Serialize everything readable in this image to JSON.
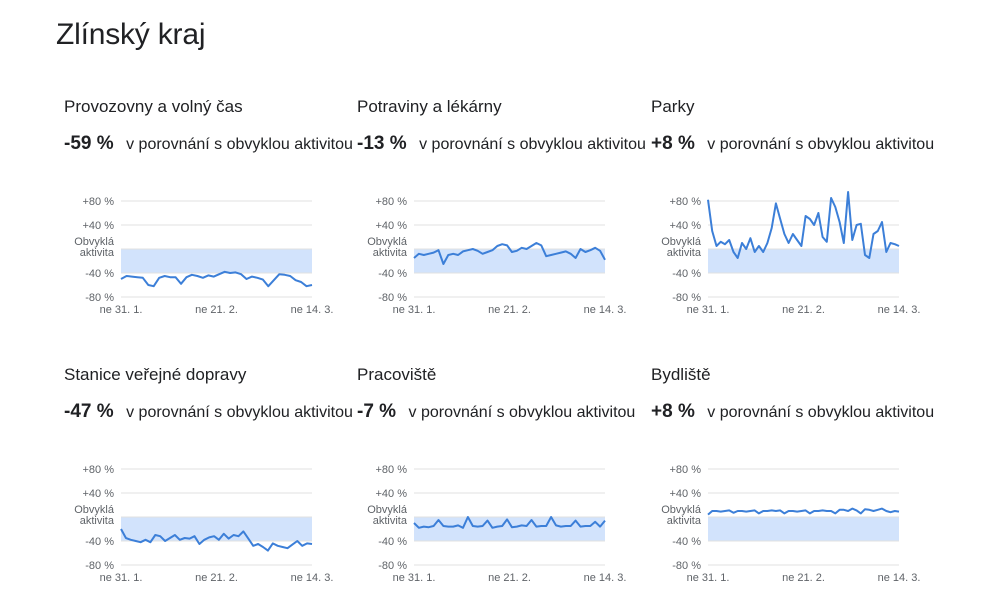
{
  "page": {
    "title": "Zlínský kraj"
  },
  "comparison_text": "v porovnání s obvyklou aktivitou",
  "colors": {
    "line": "#3c7fd8",
    "band": "#d2e3fc",
    "grid": "#e0e0e0",
    "text": "#202124",
    "tick": "#5f6368"
  },
  "chart_data": [
    {
      "type": "line",
      "title": "Provozovny a volný čas",
      "change": "-59 %",
      "ylim": [
        -80,
        80
      ],
      "y_ticks": [
        "+80 %",
        "+40 %",
        "Obvyklá aktivita",
        "-40 %",
        "-80 %"
      ],
      "x_ticks": [
        "ne 31. 1.",
        "ne 21. 2.",
        "ne 14. 3."
      ],
      "series": [
        {
          "values": [
            -50,
            -45,
            -46,
            -47,
            -48,
            -60,
            -62,
            -48,
            -45,
            -47,
            -47,
            -58,
            -47,
            -43,
            -45,
            -48,
            -44,
            -46,
            -42,
            -38,
            -40,
            -39,
            -42,
            -50,
            -46,
            -48,
            -51,
            -62,
            -52,
            -42,
            -43,
            -45,
            -52,
            -55,
            -62,
            -60
          ]
        }
      ]
    },
    {
      "type": "line",
      "title": "Potraviny a lékárny",
      "change": "-13 %",
      "ylim": [
        -80,
        80
      ],
      "y_ticks": [
        "+80 %",
        "+40 %",
        "Obvyklá aktivita",
        "-40 %",
        "-80 %"
      ],
      "x_ticks": [
        "ne 31. 1.",
        "ne 21. 2.",
        "ne 14. 3."
      ],
      "series": [
        {
          "values": [
            -15,
            -8,
            -10,
            -8,
            -6,
            -2,
            -25,
            -10,
            -8,
            -10,
            -4,
            -2,
            0,
            -3,
            -8,
            -5,
            -2,
            5,
            8,
            6,
            -5,
            -3,
            2,
            0,
            5,
            10,
            6,
            -12,
            -10,
            -8,
            -6,
            -4,
            -8,
            -15,
            0,
            -5,
            -2,
            2,
            -3,
            -18
          ]
        }
      ]
    },
    {
      "type": "line",
      "title": "Parky",
      "change": "+8 %",
      "ylim": [
        -80,
        80
      ],
      "y_ticks": [
        "+80 %",
        "+40 %",
        "Obvyklá aktivita",
        "-40 %",
        "-80 %"
      ],
      "x_ticks": [
        "ne 31. 1.",
        "ne 21. 2.",
        "ne 14. 3."
      ],
      "series": [
        {
          "values": [
            82,
            30,
            5,
            12,
            8,
            15,
            -5,
            -15,
            10,
            0,
            18,
            -5,
            5,
            -5,
            10,
            35,
            76,
            50,
            25,
            10,
            25,
            15,
            5,
            55,
            50,
            40,
            60,
            20,
            12,
            85,
            70,
            45,
            10,
            95,
            15,
            40,
            42,
            -10,
            -15,
            25,
            30,
            45,
            -5,
            10,
            8,
            5
          ]
        }
      ]
    },
    {
      "type": "line",
      "title": "Stanice veřejné dopravy",
      "change": "-47 %",
      "ylim": [
        -80,
        80
      ],
      "y_ticks": [
        "+80 %",
        "+40 %",
        "Obvyklá aktivita",
        "-40 %",
        "-80 %"
      ],
      "x_ticks": [
        "ne 31. 1.",
        "ne 21. 2.",
        "ne 14. 3."
      ],
      "series": [
        {
          "values": [
            -20,
            -35,
            -38,
            -40,
            -42,
            -38,
            -42,
            -30,
            -32,
            -40,
            -35,
            -30,
            -38,
            -35,
            -36,
            -32,
            -45,
            -38,
            -34,
            -32,
            -38,
            -28,
            -36,
            -30,
            -32,
            -24,
            -36,
            -48,
            -45,
            -50,
            -56,
            -44,
            -48,
            -50,
            -52,
            -46,
            -40,
            -48,
            -44,
            -45
          ]
        }
      ]
    },
    {
      "type": "line",
      "title": "Pracoviště",
      "change": "-7 %",
      "ylim": [
        -80,
        80
      ],
      "y_ticks": [
        "+80 %",
        "+40 %",
        "Obvyklá aktivita",
        "-40 %",
        "-80 %"
      ],
      "x_ticks": [
        "ne 31. 1.",
        "ne 21. 2.",
        "ne 14. 3."
      ],
      "series": [
        {
          "values": [
            -10,
            -18,
            -16,
            -17,
            -15,
            -5,
            -15,
            -16,
            -16,
            -14,
            -18,
            0,
            -15,
            -16,
            -15,
            -6,
            -18,
            -16,
            -15,
            -4,
            -17,
            -16,
            -14,
            -15,
            -5,
            -16,
            -15,
            -15,
            0,
            -14,
            -16,
            -15,
            -15,
            -6,
            -16,
            -15,
            -15,
            -8,
            -16,
            -6
          ]
        }
      ]
    },
    {
      "type": "line",
      "title": "Bydliště",
      "change": "+8 %",
      "ylim": [
        -80,
        80
      ],
      "y_ticks": [
        "+80 %",
        "+40 %",
        "Obvyklá aktivita",
        "-40 %",
        "-80 %"
      ],
      "x_ticks": [
        "ne 31. 1.",
        "ne 21. 2.",
        "ne 14. 3."
      ],
      "series": [
        {
          "values": [
            4,
            10,
            10,
            9,
            10,
            11,
            7,
            10,
            10,
            9,
            10,
            11,
            6,
            10,
            10,
            11,
            10,
            11,
            6,
            10,
            10,
            9,
            10,
            11,
            6,
            10,
            10,
            11,
            10,
            10,
            6,
            12,
            12,
            10,
            14,
            11,
            6,
            13,
            12,
            10,
            12,
            14,
            10,
            8,
            10,
            9
          ]
        }
      ]
    }
  ]
}
